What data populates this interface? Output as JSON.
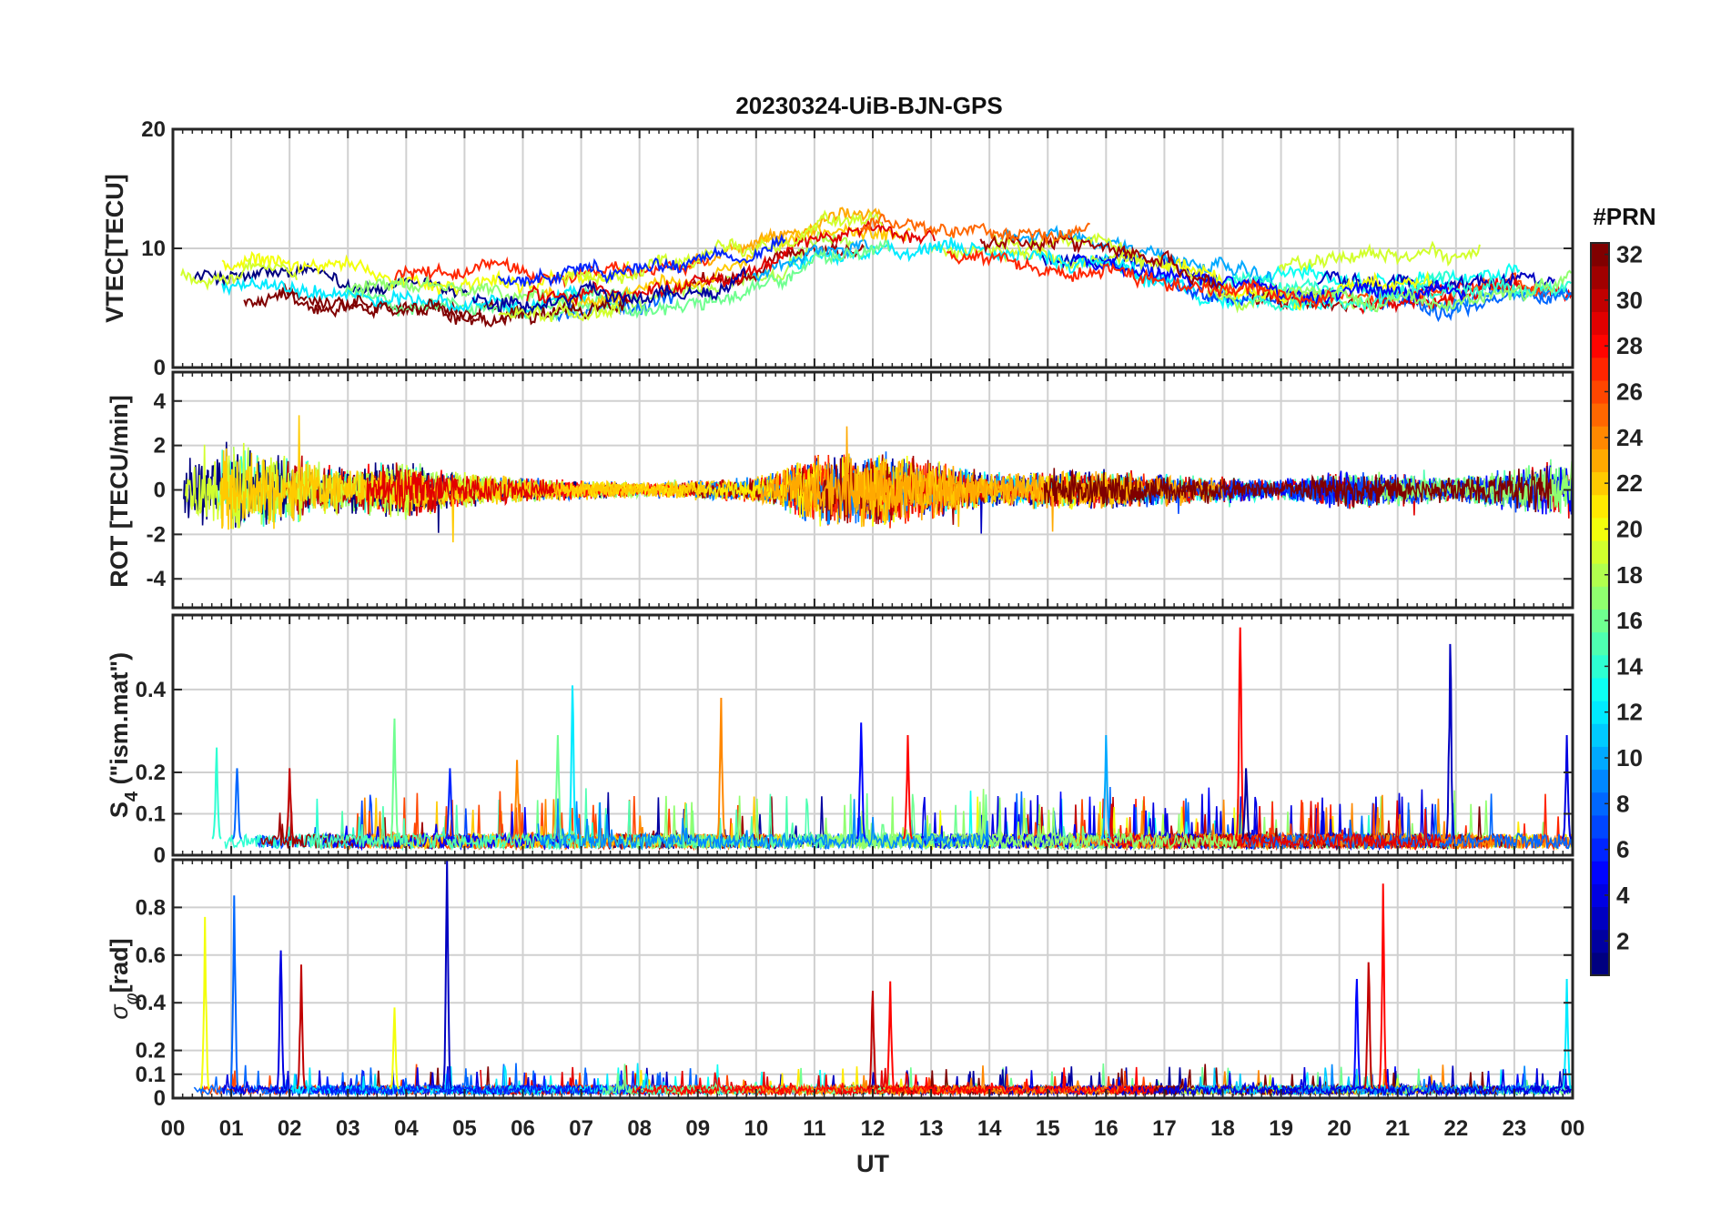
{
  "chart_data": {
    "type": "line",
    "title": "20230324-UiB-BJN-GPS",
    "xlabel": "UT",
    "x_ticks": [
      "00",
      "01",
      "02",
      "03",
      "04",
      "05",
      "06",
      "07",
      "08",
      "09",
      "10",
      "11",
      "12",
      "13",
      "14",
      "15",
      "16",
      "17",
      "18",
      "19",
      "20",
      "21",
      "22",
      "23",
      "00"
    ],
    "x_range_hours": [
      0,
      24
    ],
    "grid": true,
    "colorbar": {
      "label": "#PRN",
      "range": [
        1,
        32
      ],
      "ticks": [
        2,
        4,
        6,
        8,
        10,
        12,
        14,
        16,
        18,
        20,
        22,
        24,
        26,
        28,
        30,
        32
      ],
      "colormap": "jet",
      "placement": "right"
    },
    "panels": [
      {
        "id": "vtec",
        "ylabel": "VTEC[TECU]",
        "ylim": [
          0,
          20
        ],
        "y_ticks": [
          0,
          10,
          20
        ],
        "trend_hours": [
          0,
          2,
          4,
          6,
          8,
          10,
          11,
          12,
          13,
          14,
          16,
          18,
          20,
          22,
          24
        ],
        "trend_values": [
          7,
          7,
          6,
          5.5,
          6.5,
          8.5,
          10.5,
          11,
          10.5,
          10,
          9.5,
          7,
          6.5,
          7,
          8
        ]
      },
      {
        "id": "rot",
        "ylabel": "ROT [TECU/min]",
        "ylim": [
          -5.3,
          5.3
        ],
        "y_ticks": [
          -4,
          -2,
          0,
          2,
          4
        ],
        "activity_hours": [
          0,
          1,
          2,
          3,
          4,
          5,
          6,
          8,
          10,
          11,
          12,
          13,
          14,
          16,
          19,
          20,
          22,
          23,
          24
        ],
        "activity_levels": [
          1.5,
          2,
          1.4,
          0.9,
          1.2,
          0.7,
          0.5,
          0.3,
          0.5,
          1.4,
          1.6,
          1.2,
          0.7,
          0.8,
          0.4,
          0.8,
          0.5,
          0.9,
          1.4
        ]
      },
      {
        "id": "s4",
        "ylabel": "S4 (\"ism.mat\")",
        "ylabel_main": "S",
        "ylabel_sub": "4",
        "ylabel_tail": " (\"ism.mat\")",
        "ylim": [
          0,
          0.58
        ],
        "y_ticks": [
          0,
          0.1,
          0.2,
          0.4
        ],
        "y_tick_labels": [
          "0",
          "0.1",
          "0.2",
          "0.4"
        ],
        "baseline": 0.04,
        "spikes": [
          {
            "t": 0.75,
            "v": 0.26,
            "prn": 14
          },
          {
            "t": 1.1,
            "v": 0.21,
            "prn": 8
          },
          {
            "t": 2.0,
            "v": 0.21,
            "prn": 30
          },
          {
            "t": 3.8,
            "v": 0.33,
            "prn": 16
          },
          {
            "t": 4.75,
            "v": 0.21,
            "prn": 6
          },
          {
            "t": 5.9,
            "v": 0.23,
            "prn": 24
          },
          {
            "t": 6.6,
            "v": 0.29,
            "prn": 16
          },
          {
            "t": 6.85,
            "v": 0.41,
            "prn": 12
          },
          {
            "t": 9.4,
            "v": 0.38,
            "prn": 24
          },
          {
            "t": 11.8,
            "v": 0.32,
            "prn": 5
          },
          {
            "t": 12.6,
            "v": 0.29,
            "prn": 28
          },
          {
            "t": 16.0,
            "v": 0.29,
            "prn": 10
          },
          {
            "t": 18.3,
            "v": 0.55,
            "prn": 28
          },
          {
            "t": 18.4,
            "v": 0.21,
            "prn": 2
          },
          {
            "t": 21.9,
            "v": 0.51,
            "prn": 3
          },
          {
            "t": 23.9,
            "v": 0.29,
            "prn": 4
          }
        ]
      },
      {
        "id": "sigma_phi",
        "ylabel": "σφ[rad]",
        "ylabel_main": "σ",
        "ylabel_sub": "φ",
        "ylabel_tail": "[rad]",
        "ylim": [
          0,
          1.0
        ],
        "y_ticks": [
          0,
          0.1,
          0.2,
          0.4,
          0.6,
          0.8
        ],
        "y_tick_labels": [
          "0",
          "0.1",
          "0.2",
          "0.4",
          "0.6",
          "0.8"
        ],
        "baseline": 0.04,
        "spikes": [
          {
            "t": 0.55,
            "v": 0.76,
            "prn": 20
          },
          {
            "t": 1.05,
            "v": 0.85,
            "prn": 8
          },
          {
            "t": 1.85,
            "v": 0.62,
            "prn": 4
          },
          {
            "t": 2.2,
            "v": 0.56,
            "prn": 30
          },
          {
            "t": 3.8,
            "v": 0.38,
            "prn": 20
          },
          {
            "t": 4.7,
            "v": 1.0,
            "prn": 3
          },
          {
            "t": 12.0,
            "v": 0.45,
            "prn": 30
          },
          {
            "t": 12.3,
            "v": 0.49,
            "prn": 28
          },
          {
            "t": 20.3,
            "v": 0.5,
            "prn": 5
          },
          {
            "t": 20.5,
            "v": 0.57,
            "prn": 30
          },
          {
            "t": 20.75,
            "v": 0.9,
            "prn": 28
          },
          {
            "t": 23.9,
            "v": 0.5,
            "prn": 12
          }
        ]
      }
    ]
  }
}
